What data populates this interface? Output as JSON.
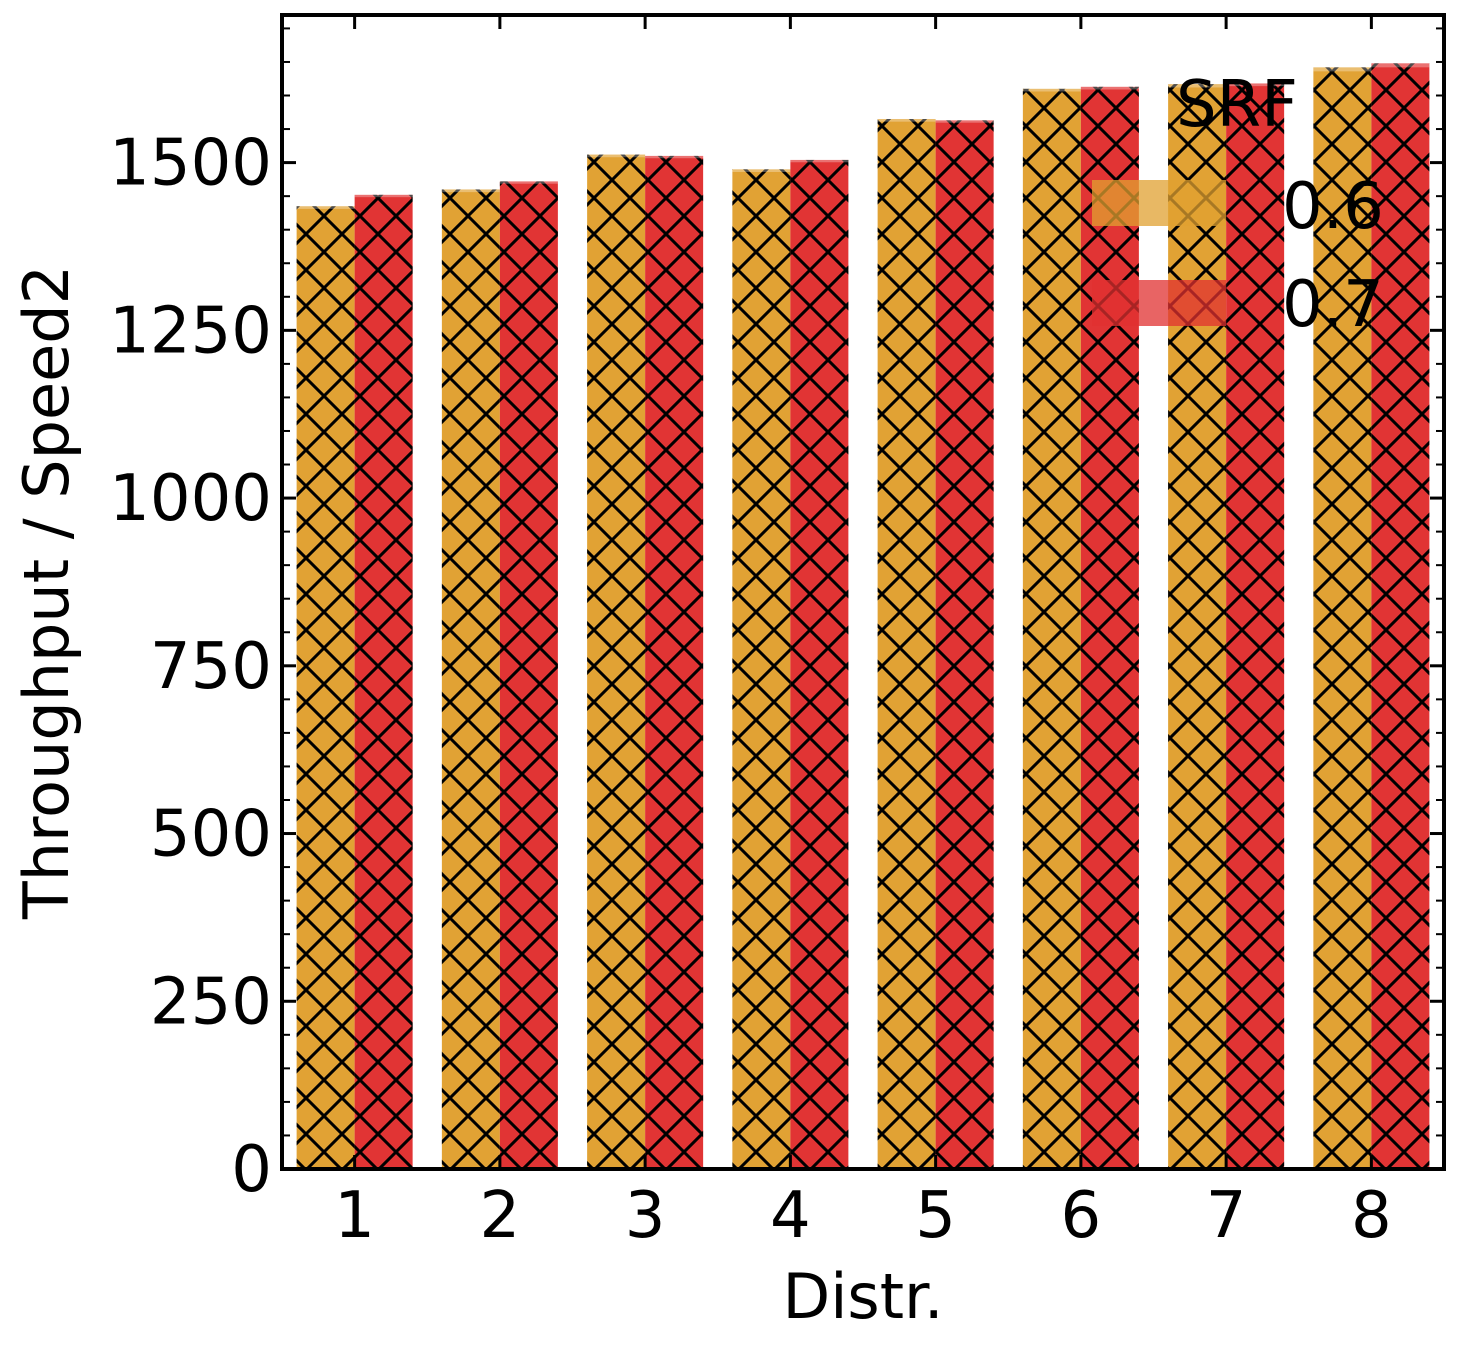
{
  "chart_data": {
    "type": "bar",
    "xlabel": "Distr.",
    "ylabel": "Throughput / Speed2",
    "categories": [
      "1",
      "2",
      "3",
      "4",
      "5",
      "6",
      "7",
      "8"
    ],
    "series": [
      {
        "name": "0.6",
        "color": "#e0a030",
        "values": [
          1435,
          1460,
          1512,
          1490,
          1565,
          1610,
          1617,
          1642
        ],
        "errors": [
          8,
          8,
          8,
          8,
          8,
          8,
          10,
          12
        ]
      },
      {
        "name": "0.7",
        "color": "#e03030",
        "values": [
          1452,
          1472,
          1510,
          1504,
          1563,
          1613,
          1618,
          1648
        ],
        "errors": [
          7,
          7,
          7,
          7,
          7,
          8,
          8,
          12
        ]
      }
    ],
    "ylim": [
      0,
      1720
    ],
    "yticks": [
      0,
      250,
      500,
      750,
      1000,
      1250,
      1500
    ],
    "hatch": "cross-hatch",
    "grid": false,
    "legend": {
      "title": "SRF",
      "position": "top-right"
    }
  }
}
